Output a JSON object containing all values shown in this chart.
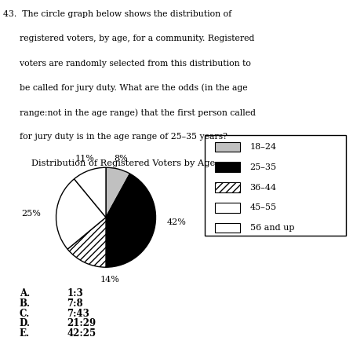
{
  "title": "Distribution of Registered Voters by Age",
  "slices": [
    8,
    42,
    14,
    25,
    11
  ],
  "labels": [
    "18–24",
    "25–35",
    "36–44",
    "45–55",
    "56 and up"
  ],
  "pct_labels": [
    "8%",
    "42%",
    "14%",
    "25%",
    "11%"
  ],
  "colors": [
    "#c0c0c0",
    "#000000",
    "#ffffff",
    "#ffffff",
    "#ffffff"
  ],
  "hatches": [
    "",
    "",
    "////",
    "",
    "==="
  ],
  "question_lines": [
    "43.  The circle graph below shows the distribution of",
    "      registered voters, by age, for a community. Registered",
    "      voters are randomly selected from this distribution to",
    "      be called for jury duty. What are the odds (in the age",
    "      range:not in the age range) that the first person called",
    "      for jury duty is in the age range of 25–35 years?"
  ],
  "answers_left": [
    "A.",
    "B.",
    "C.",
    "D.",
    "E."
  ],
  "answers_right": [
    "1:3",
    "7:8",
    "7:43",
    "21:29",
    "42:25"
  ],
  "bg_color": "#ffffff",
  "text_color": "#000000"
}
